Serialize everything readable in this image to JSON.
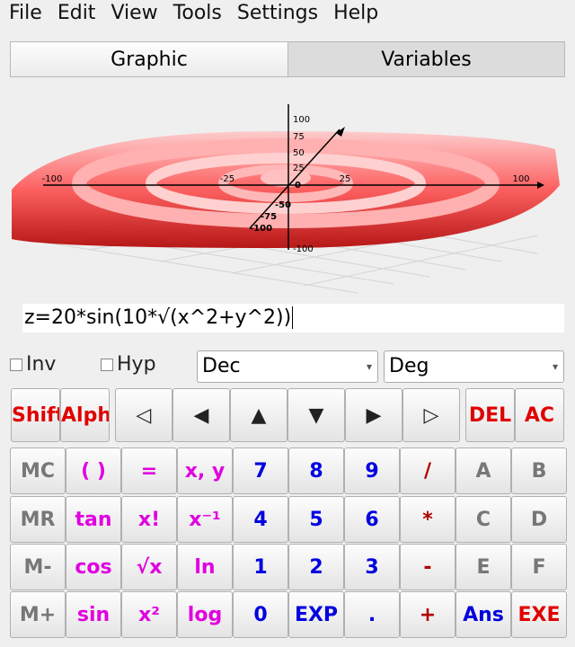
{
  "menu": [
    "File",
    "Edit",
    "View",
    "Tools",
    "Settings",
    "Help"
  ],
  "tabs": [
    "Graphic",
    "Variables"
  ],
  "graph": {
    "x_labels": [
      "-100",
      "-25",
      "25",
      "100"
    ],
    "z_labels": [
      "100",
      "75",
      "50",
      "25",
      "0",
      "-100"
    ],
    "y_labels": [
      "-50",
      "-75",
      "-100"
    ]
  },
  "expression": "z=20*sin(10*√(x^2+y^2))",
  "options": {
    "checkboxes": [
      "Inv",
      "Hyp"
    ],
    "dropdowns": [
      "Dec",
      "Deg"
    ]
  },
  "keypad": [
    [
      {
        "label": "Shift",
        "color": "#e00000"
      },
      {
        "label": "Alpha",
        "color": "#e00000"
      },
      {
        "label": "◁",
        "color": "#222"
      },
      {
        "label": "◀",
        "color": "#222"
      },
      {
        "label": "▲",
        "color": "#222"
      },
      {
        "label": "▼",
        "color": "#222"
      },
      {
        "label": "▶",
        "color": "#222"
      },
      {
        "label": "▷",
        "color": "#222"
      },
      {
        "label": "DEL",
        "color": "#e00000"
      },
      {
        "label": "AC",
        "color": "#e00000"
      }
    ],
    [
      {
        "label": "MC",
        "color": "#777"
      },
      {
        "label": "( )",
        "color": "#e000e0"
      },
      {
        "label": "=",
        "color": "#e000e0"
      },
      {
        "label": "x, y",
        "color": "#e000e0"
      },
      {
        "label": "7",
        "color": "#0000e0"
      },
      {
        "label": "8",
        "color": "#0000e0"
      },
      {
        "label": "9",
        "color": "#0000e0"
      },
      {
        "label": "/",
        "color": "#b00000"
      },
      {
        "label": "A",
        "color": "#777"
      },
      {
        "label": "B",
        "color": "#777"
      }
    ],
    [
      {
        "label": "MR",
        "color": "#777"
      },
      {
        "label": "tan",
        "color": "#e000e0"
      },
      {
        "label": "x!",
        "color": "#e000e0"
      },
      {
        "label": "x⁻¹",
        "color": "#e000e0"
      },
      {
        "label": "4",
        "color": "#0000e0"
      },
      {
        "label": "5",
        "color": "#0000e0"
      },
      {
        "label": "6",
        "color": "#0000e0"
      },
      {
        "label": "*",
        "color": "#b00000"
      },
      {
        "label": "C",
        "color": "#777"
      },
      {
        "label": "D",
        "color": "#777"
      }
    ],
    [
      {
        "label": "M-",
        "color": "#777"
      },
      {
        "label": "cos",
        "color": "#e000e0"
      },
      {
        "label": "√x",
        "color": "#e000e0"
      },
      {
        "label": "ln",
        "color": "#e000e0"
      },
      {
        "label": "1",
        "color": "#0000e0"
      },
      {
        "label": "2",
        "color": "#0000e0"
      },
      {
        "label": "3",
        "color": "#0000e0"
      },
      {
        "label": "-",
        "color": "#b00000"
      },
      {
        "label": "E",
        "color": "#777"
      },
      {
        "label": "F",
        "color": "#777"
      }
    ],
    [
      {
        "label": "M+",
        "color": "#777"
      },
      {
        "label": "sin",
        "color": "#e000e0"
      },
      {
        "label": "x²",
        "color": "#e000e0"
      },
      {
        "label": "log",
        "color": "#e000e0"
      },
      {
        "label": "0",
        "color": "#0000e0"
      },
      {
        "label": "EXP",
        "color": "#0000e0"
      },
      {
        "label": ".",
        "color": "#0000e0"
      },
      {
        "label": "+",
        "color": "#b00000"
      },
      {
        "label": "Ans",
        "color": "#0000e0"
      },
      {
        "label": "EXE",
        "color": "#e00000"
      }
    ]
  ]
}
